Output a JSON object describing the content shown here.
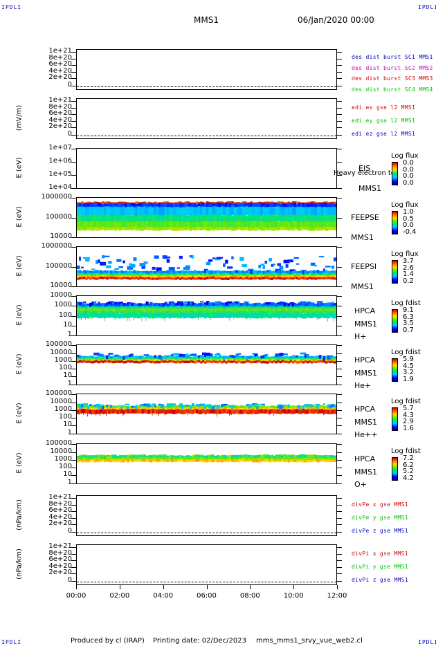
{
  "corners": {
    "tl": "IPDLI",
    "tr": "IPDLI",
    "bl": "IPDLI",
    "br": "IPDLI"
  },
  "header": {
    "spacecraft": "MMS1",
    "datetime": "06/Jan/2020 00:00"
  },
  "footer": {
    "produced": "Produced by cl (IRAP)",
    "printing": "Printing date: 02/Dec/2023",
    "file": "mms_mms1_srvy_vue_web2.cl"
  },
  "chart_data": {
    "type": "heatmap",
    "x_ticks": [
      "00:00",
      "02:00",
      "04:00",
      "06:00",
      "08:00",
      "10:00",
      "12:00"
    ],
    "panels": [
      {
        "id": "des",
        "ylabel": "",
        "yticks": [
          "1e+21",
          "8e+20",
          "6e+20",
          "4e+20",
          "2e+20",
          "0"
        ],
        "legend": [
          {
            "text": "des dist burst SC1 MMS1",
            "color": "#0000c0"
          },
          {
            "text": "des dist burst SC2 MMS2",
            "color": "#d000d0"
          },
          {
            "text": "des dist burst SC3 MMS3",
            "color": "#d00000"
          },
          {
            "text": "des dist burst SC4 MMS4",
            "color": "#00c000"
          }
        ]
      },
      {
        "id": "edi",
        "ylabel": "(mV/m)",
        "yticks": [
          "1e+21",
          "8e+20",
          "6e+20",
          "4e+20",
          "2e+20",
          "0"
        ],
        "legend": [
          {
            "text": "edi ex gse l2 MMS1",
            "color": "#d00000"
          },
          {
            "text": "edi ey gse l2 MMS1",
            "color": "#00c000"
          },
          {
            "text": "edi ez gse l2 MMS1",
            "color": "#0000c0"
          }
        ]
      },
      {
        "id": "eis",
        "ylabel": "E (eV)",
        "yticks": [
          "1e+07",
          "1e+06",
          "1e+05",
          "1e+04"
        ],
        "labels": [
          "EIS",
          "MMS1"
        ],
        "overlay": "Heavy electron to",
        "colorbar": {
          "title": "Log flux",
          "values": [
            "0.0",
            "0.0",
            "0.0",
            "0.0"
          ]
        }
      },
      {
        "id": "feepse",
        "ylabel": "E (eV)",
        "yticks": [
          "1000000",
          "100000",
          "10000"
        ],
        "labels": [
          "FEEPSE",
          "MMS1"
        ],
        "colorbar": {
          "title": "Log flux",
          "values": [
            "1.0",
            "0.5",
            "0.0",
            "-0.4"
          ]
        }
      },
      {
        "id": "feepsi",
        "ylabel": "E (eV)",
        "yticks": [
          "1000000",
          "100000",
          "10000"
        ],
        "labels": [
          "FEEPSI",
          "MMS1"
        ],
        "colorbar": {
          "title": "Log flux",
          "values": [
            "3.7",
            "2.6",
            "1.4",
            "0.2"
          ]
        }
      },
      {
        "id": "hpca_h",
        "ylabel": "E (eV)",
        "yticks": [
          "10000",
          "1000",
          "100",
          "10",
          "1"
        ],
        "labels": [
          "HPCA",
          "MMS1",
          "H+"
        ],
        "colorbar": {
          "title": "Log fdist",
          "values": [
            "9.1",
            "6.3",
            "3.5",
            "0.7"
          ]
        }
      },
      {
        "id": "hpca_he",
        "ylabel": "E (eV)",
        "yticks": [
          "100000",
          "10000",
          "1000",
          "100",
          "10",
          "1"
        ],
        "labels": [
          "HPCA",
          "MMS1",
          "He+"
        ],
        "colorbar": {
          "title": "Log fdist",
          "values": [
            "5.9",
            "4.5",
            "3.2",
            "1.9"
          ]
        }
      },
      {
        "id": "hpca_hepp",
        "ylabel": "E (eV)",
        "yticks": [
          "100000",
          "10000",
          "1000",
          "100",
          "10",
          "1"
        ],
        "labels": [
          "HPCA",
          "MMS1",
          "He++"
        ],
        "colorbar": {
          "title": "Log fdist",
          "values": [
            "5.7",
            "4.3",
            "2.9",
            "1.6"
          ]
        }
      },
      {
        "id": "hpca_o",
        "ylabel": "E (eV)",
        "yticks": [
          "100000",
          "10000",
          "1000",
          "100",
          "10",
          "1"
        ],
        "labels": [
          "HPCA",
          "MMS1",
          "O+"
        ],
        "colorbar": {
          "title": "Log fdist",
          "values": [
            "7.2",
            "6.2",
            "5.2",
            "4.2"
          ]
        }
      },
      {
        "id": "divpe",
        "ylabel": "(nPa/km)",
        "yticks": [
          "1e+21",
          "8e+20",
          "6e+20",
          "4e+20",
          "2e+20",
          "0"
        ],
        "legend": [
          {
            "text": "divPe x gse MMS1",
            "color": "#d00000"
          },
          {
            "text": "divPe y gse MMS1",
            "color": "#00c000"
          },
          {
            "text": "divPe z gse MMS1",
            "color": "#0000c0"
          }
        ]
      },
      {
        "id": "divpi",
        "ylabel": "(nPa/km)",
        "yticks": [
          "1e+21",
          "8e+20",
          "6e+20",
          "4e+20",
          "2e+20",
          "0"
        ],
        "legend": [
          {
            "text": "divPi x gse MMS1",
            "color": "#d00000"
          },
          {
            "text": "divPi y gse MMS1",
            "color": "#00c000"
          },
          {
            "text": "divPi z gse MMS1",
            "color": "#0000c0"
          }
        ]
      }
    ]
  }
}
